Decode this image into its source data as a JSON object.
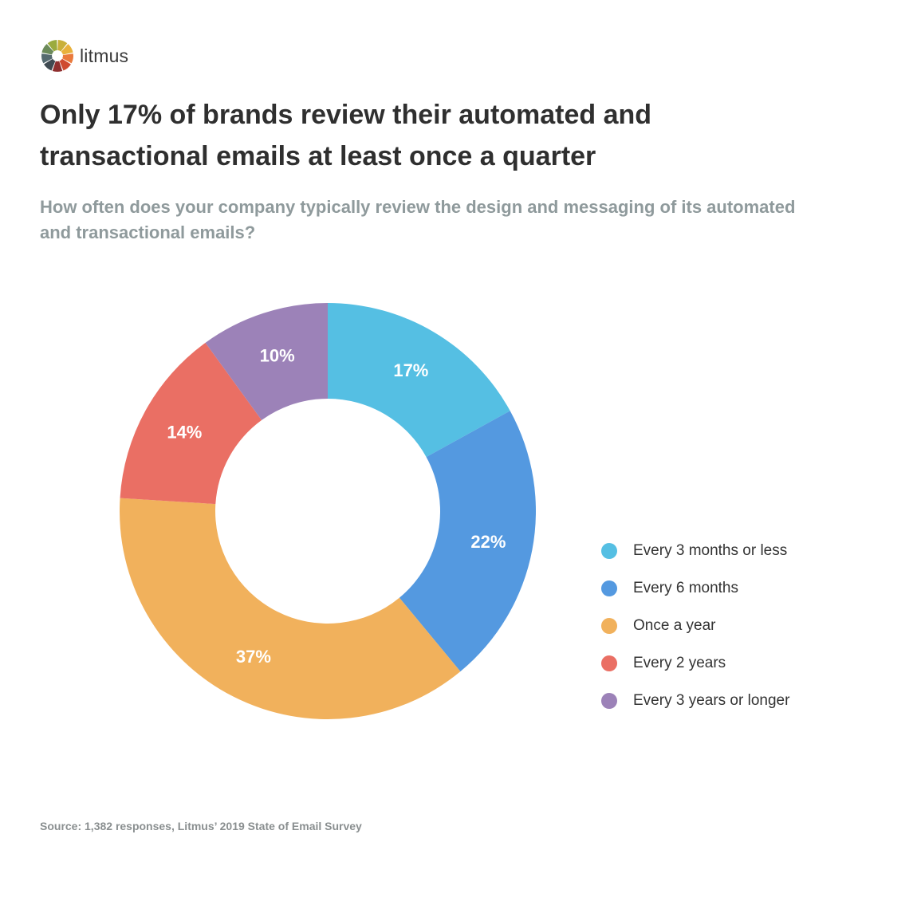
{
  "brand": {
    "name": "litmus",
    "logo_colors": [
      "#c9b03a",
      "#e8b13c",
      "#ea7a3c",
      "#cf4a2f",
      "#8f2f2f",
      "#3f4a52",
      "#556a70",
      "#6b8a5a",
      "#9bab3e"
    ]
  },
  "header": {
    "title": "Only 17% of brands review their automated and transactional emails at least once a quarter",
    "subtitle": "How often does your company typically review the design and messaging of its automated and transactional emails?"
  },
  "chart_data": {
    "type": "pie",
    "style": "donut",
    "categories": [
      "Every 3 months or less",
      "Every 6 months",
      "Once a year",
      "Every 2 years",
      "Every 3 years or longer"
    ],
    "values": [
      17,
      22,
      37,
      14,
      10
    ],
    "labels": [
      "17%",
      "22%",
      "37%",
      "14%",
      "10%"
    ],
    "colors": [
      "#55bfe3",
      "#5499e0",
      "#f1b15c",
      "#ea6f64",
      "#9c82b8"
    ],
    "legend_placement": "right",
    "label_color": "#ffffff"
  },
  "footer": {
    "source": "Source: 1,382 responses, Litmus’ 2019 State of Email Survey"
  }
}
